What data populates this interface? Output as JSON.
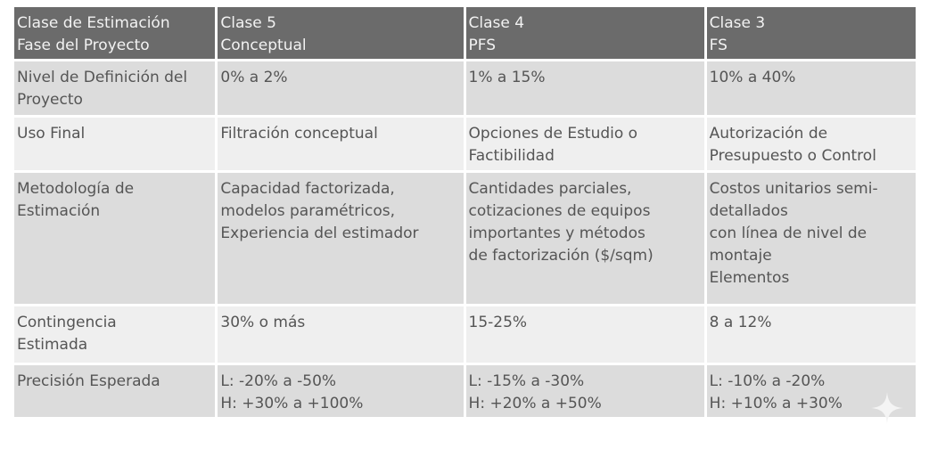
{
  "header": [
    [
      "Clase de Estimación",
      "Fase del Proyecto"
    ],
    [
      "Clase 5",
      "Conceptual"
    ],
    [
      "Clase 4",
      "PFS"
    ],
    [
      "Clase 3",
      "FS"
    ]
  ],
  "rows": [
    {
      "label": [
        "Nivel de Definición del",
        "Proyecto"
      ],
      "cells": [
        [
          "0% a 2%"
        ],
        [
          "1% a 15%"
        ],
        [
          "10% a 40%"
        ]
      ]
    },
    {
      "label": [
        "Uso Final"
      ],
      "cells": [
        [
          "Filtración conceptual"
        ],
        [
          "Opciones de Estudio o",
          "Factibilidad"
        ],
        [
          "Autorización de",
          "Presupuesto o Control"
        ]
      ]
    },
    {
      "label": [
        "Metodología de",
        "Estimación"
      ],
      "cells": [
        [
          "Capacidad factorizada,",
          "modelos paramétricos,",
          "Experiencia del estimador"
        ],
        [
          "Cantidades parciales,",
          "cotizaciones de equipos",
          "importantes y métodos",
          "de factorización ($/sqm)"
        ],
        [
          "Costos unitarios semi-",
          "detallados",
          "con línea de nivel de",
          "montaje",
          "Elementos"
        ]
      ]
    },
    {
      "label": [
        "Contingencia",
        "Estimada"
      ],
      "cells": [
        [
          "30% o más"
        ],
        [
          "15-25%"
        ],
        [
          "8 a 12%"
        ]
      ]
    },
    {
      "label": [
        "Precisión Esperada"
      ],
      "cells": [
        [
          "L: -20% a -50%",
          "H: +30% a +100%"
        ],
        [
          "L: -15% a -30%",
          "H: +20% a +50%"
        ],
        [
          "L: -10% a -20%",
          "H: +10% a +30%"
        ]
      ]
    }
  ],
  "colors": {
    "header_bg": "#6b6b6b",
    "row_dark": "#dcdcdc",
    "row_light": "#efefef",
    "text": "#555555"
  },
  "watermark_icon": "sparkle-icon"
}
